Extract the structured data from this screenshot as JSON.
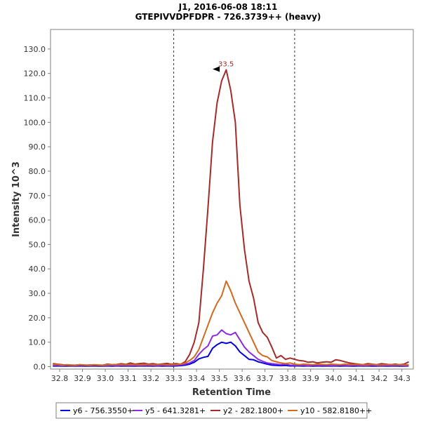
{
  "chart_data": {
    "type": "line",
    "title": "J1, 2016-06-08 18:11",
    "subtitle": "GTEPIVVDPFDPR - 726.3739++ (heavy)",
    "xlabel": "Retention Time",
    "ylabel": "Intensity 10^3",
    "xlim": [
      32.76,
      34.35
    ],
    "ylim": [
      -1,
      138
    ],
    "x_ticks": [
      "32.8",
      "32.9",
      "33.0",
      "33.1",
      "33.2",
      "33.3",
      "33.4",
      "33.5",
      "33.6",
      "33.7",
      "33.8",
      "33.9",
      "34.0",
      "34.1",
      "34.2",
      "34.3"
    ],
    "y_ticks": [
      "0.0",
      "10.0",
      "20.0",
      "30.0",
      "40.0",
      "50.0",
      "60.0",
      "70.0",
      "80.0",
      "90.0",
      "100.0",
      "110.0",
      "120.0",
      "130.0"
    ],
    "grid": false,
    "legend_position": "bottom",
    "integration_bounds": [
      33.3,
      33.83
    ],
    "peak_annotation": {
      "x": 33.52,
      "y": 121.5,
      "label": "33.5",
      "color": "#a52a2a"
    },
    "x": [
      32.77,
      32.79,
      32.81,
      32.83,
      32.85,
      32.87,
      32.89,
      32.91,
      32.93,
      32.95,
      32.97,
      32.99,
      33.01,
      33.03,
      33.05,
      33.07,
      33.09,
      33.11,
      33.13,
      33.15,
      33.17,
      33.19,
      33.21,
      33.23,
      33.25,
      33.27,
      33.29,
      33.31,
      33.33,
      33.35,
      33.37,
      33.39,
      33.41,
      33.43,
      33.45,
      33.47,
      33.49,
      33.51,
      33.53,
      33.55,
      33.57,
      33.59,
      33.61,
      33.63,
      33.65,
      33.67,
      33.69,
      33.71,
      33.73,
      33.75,
      33.77,
      33.79,
      33.81,
      33.83,
      33.85,
      33.87,
      33.89,
      33.91,
      33.93,
      33.95,
      33.97,
      33.99,
      34.01,
      34.03,
      34.05,
      34.07,
      34.09,
      34.11,
      34.13,
      34.15,
      34.17,
      34.19,
      34.21,
      34.23,
      34.25,
      34.27,
      34.29,
      34.31,
      34.33
    ],
    "series": [
      {
        "name": "y6 - 756.3550+",
        "color": "#0000e0",
        "values": [
          0.2,
          0.3,
          0.2,
          0.2,
          0.3,
          0.2,
          0.3,
          0.2,
          0.2,
          0.3,
          0.2,
          0.2,
          0.3,
          0.2,
          0.3,
          0.2,
          0.3,
          0.2,
          0.2,
          0.3,
          0.2,
          0.3,
          0.2,
          0.3,
          0.2,
          0.3,
          0.2,
          0.3,
          0.4,
          0.6,
          1.0,
          1.8,
          3.2,
          3.8,
          4.2,
          7.5,
          9.0,
          10.0,
          9.5,
          10.0,
          8.5,
          6.0,
          4.5,
          3.0,
          2.8,
          2.0,
          1.5,
          1.0,
          0.6,
          0.5,
          0.4,
          0.5,
          0.3,
          0.3,
          0.3,
          0.2,
          0.3,
          0.2,
          0.3,
          0.2,
          0.3,
          0.2,
          0.3,
          0.2,
          0.3,
          0.2,
          0.2,
          0.3,
          0.2,
          0.3,
          0.2,
          0.2,
          0.3,
          0.2,
          0.2,
          0.3,
          0.2,
          0.2,
          0.3
        ]
      },
      {
        "name": "y5 - 641.3281+",
        "color": "#8a2be2",
        "values": [
          0.5,
          0.6,
          0.4,
          0.5,
          0.5,
          0.4,
          0.6,
          0.5,
          0.4,
          0.6,
          0.5,
          0.4,
          0.5,
          0.6,
          0.4,
          0.5,
          0.6,
          0.4,
          0.5,
          0.5,
          0.4,
          0.6,
          0.5,
          0.4,
          0.6,
          0.5,
          0.4,
          0.6,
          0.7,
          1.0,
          1.5,
          2.5,
          5.0,
          7.0,
          8.5,
          12.5,
          13.0,
          15.0,
          13.5,
          13.0,
          14.0,
          11.0,
          8.0,
          6.0,
          4.5,
          3.0,
          2.2,
          1.5,
          1.2,
          1.0,
          0.8,
          1.0,
          0.6,
          0.5,
          0.6,
          0.5,
          0.4,
          0.6,
          0.5,
          0.5,
          0.6,
          0.4,
          0.5,
          0.6,
          0.5,
          0.4,
          0.6,
          0.5,
          0.4,
          0.5,
          0.6,
          0.4,
          0.5,
          0.5,
          0.4,
          0.6,
          0.5,
          0.4,
          0.5
        ]
      },
      {
        "name": "y2 - 282.1800+",
        "color": "#a52a2a",
        "values": [
          1.2,
          1.0,
          0.8,
          0.6,
          0.5,
          0.6,
          0.8,
          0.5,
          0.7,
          0.6,
          0.5,
          0.6,
          1.0,
          0.8,
          0.9,
          1.2,
          0.9,
          1.5,
          1.0,
          1.2,
          1.4,
          1.0,
          1.2,
          0.9,
          1.1,
          1.3,
          1.0,
          1.2,
          1.0,
          2.0,
          5.0,
          10.0,
          18.0,
          40.0,
          65.0,
          92.0,
          108.0,
          117.0,
          121.5,
          113.0,
          100.0,
          66.0,
          48.0,
          35.0,
          28.0,
          18.0,
          14.0,
          12.0,
          8.0,
          3.5,
          4.5,
          3.0,
          3.5,
          3.0,
          2.5,
          2.3,
          1.8,
          2.0,
          1.5,
          1.8,
          2.0,
          1.8,
          2.8,
          2.5,
          2.0,
          1.5,
          1.2,
          1.0,
          0.8,
          1.2,
          1.0,
          0.8,
          1.2,
          1.0,
          0.8,
          1.0,
          0.8,
          1.0,
          2.0
        ]
      },
      {
        "name": "y10 - 582.8180++",
        "color": "#d2691e",
        "values": [
          0.8,
          0.9,
          0.6,
          0.8,
          0.7,
          0.6,
          0.8,
          0.7,
          0.6,
          0.8,
          0.7,
          0.6,
          0.8,
          0.7,
          0.9,
          0.8,
          0.7,
          0.9,
          0.8,
          0.7,
          0.9,
          0.8,
          0.7,
          0.9,
          0.8,
          0.7,
          0.9,
          0.8,
          1.0,
          1.5,
          2.5,
          4.0,
          7.0,
          12.0,
          17.0,
          22.0,
          26.0,
          29.0,
          35.0,
          31.0,
          26.0,
          22.0,
          18.0,
          14.0,
          10.0,
          6.0,
          4.5,
          4.0,
          2.5,
          2.0,
          1.5,
          1.2,
          1.5,
          1.0,
          0.8,
          1.0,
          0.9,
          0.8,
          1.0,
          0.9,
          0.8,
          1.0,
          0.9,
          0.8,
          1.0,
          0.9,
          0.8,
          0.9,
          0.8,
          0.7,
          0.9,
          0.8,
          0.7,
          0.8,
          0.9,
          0.7,
          0.8,
          0.7,
          0.8
        ]
      }
    ]
  }
}
